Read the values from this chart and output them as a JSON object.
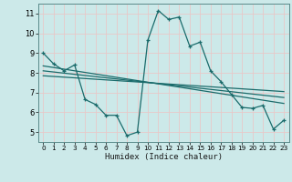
{
  "title": "",
  "xlabel": "Humidex (Indice chaleur)",
  "background_color": "#cce9e9",
  "grid_color": "#e8c8c8",
  "line_color": "#1a6b6b",
  "xlim": [
    -0.5,
    23.5
  ],
  "ylim": [
    4.5,
    11.5
  ],
  "xtick_labels": [
    "0",
    "1",
    "2",
    "3",
    "4",
    "5",
    "6",
    "7",
    "8",
    "9",
    "10",
    "11",
    "12",
    "13",
    "14",
    "15",
    "16",
    "17",
    "18",
    "19",
    "20",
    "21",
    "22",
    "23"
  ],
  "xtick_vals": [
    0,
    1,
    2,
    3,
    4,
    5,
    6,
    7,
    8,
    9,
    10,
    11,
    12,
    13,
    14,
    15,
    16,
    17,
    18,
    19,
    20,
    21,
    22,
    23
  ],
  "ytick_vals": [
    5,
    6,
    7,
    8,
    9,
    10,
    11
  ],
  "main_x": [
    0,
    1,
    2,
    3,
    4,
    5,
    6,
    7,
    8,
    9,
    10,
    11,
    12,
    13,
    14,
    15,
    16,
    17,
    18,
    19,
    20,
    21,
    22,
    23
  ],
  "main_y": [
    9.0,
    8.45,
    8.1,
    8.4,
    6.65,
    6.4,
    5.85,
    5.85,
    4.82,
    5.0,
    9.65,
    11.15,
    10.7,
    10.82,
    9.35,
    9.55,
    8.1,
    7.55,
    6.9,
    6.25,
    6.2,
    6.35,
    5.15,
    5.6
  ],
  "line1_x": [
    0,
    23
  ],
  "line1_y": [
    8.35,
    6.45
  ],
  "line2_x": [
    0,
    23
  ],
  "line2_y": [
    8.1,
    6.75
  ],
  "line3_x": [
    0,
    23
  ],
  "line3_y": [
    7.85,
    7.05
  ]
}
